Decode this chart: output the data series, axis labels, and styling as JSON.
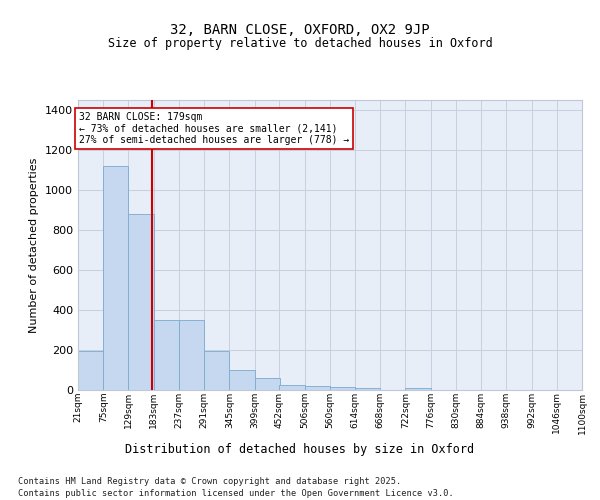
{
  "title_line1": "32, BARN CLOSE, OXFORD, OX2 9JP",
  "title_line2": "Size of property relative to detached houses in Oxford",
  "xlabel": "Distribution of detached houses by size in Oxford",
  "ylabel": "Number of detached properties",
  "annotation_line1": "32 BARN CLOSE: 179sqm",
  "annotation_line2": "← 73% of detached houses are smaller (2,141)",
  "annotation_line3": "27% of semi-detached houses are larger (778) →",
  "property_size": 179,
  "bar_color": "#c5d8f0",
  "bar_edge_color": "#7aaad0",
  "vline_color": "#cc0000",
  "background_color": "#e8eef8",
  "grid_color": "#c8d0e0",
  "bins": [
    21,
    75,
    129,
    183,
    237,
    291,
    345,
    399,
    452,
    506,
    560,
    614,
    668,
    722,
    776,
    830,
    884,
    938,
    992,
    1046,
    1100
  ],
  "bin_labels": [
    "21sqm",
    "75sqm",
    "129sqm",
    "183sqm",
    "237sqm",
    "291sqm",
    "345sqm",
    "399sqm",
    "452sqm",
    "506sqm",
    "560sqm",
    "614sqm",
    "668sqm",
    "722sqm",
    "776sqm",
    "830sqm",
    "884sqm",
    "938sqm",
    "992sqm",
    "1046sqm",
    "1100sqm"
  ],
  "counts": [
    195,
    1120,
    880,
    350,
    350,
    195,
    100,
    60,
    25,
    22,
    15,
    8,
    0,
    12,
    0,
    0,
    0,
    0,
    0,
    0
  ],
  "ylim": [
    0,
    1450
  ],
  "yticks": [
    0,
    200,
    400,
    600,
    800,
    1000,
    1200,
    1400
  ],
  "footer1": "Contains HM Land Registry data © Crown copyright and database right 2025.",
  "footer2": "Contains public sector information licensed under the Open Government Licence v3.0."
}
